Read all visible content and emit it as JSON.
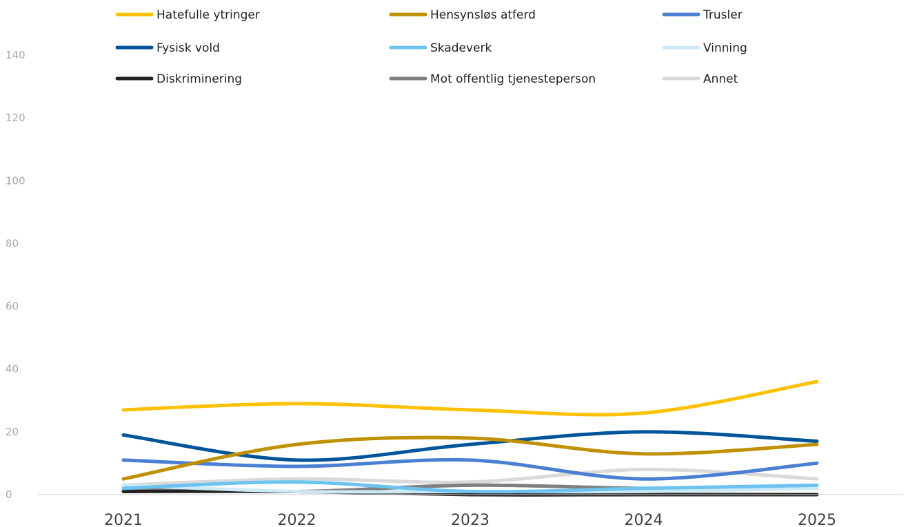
{
  "chart_data": {
    "type": "line",
    "title": "",
    "xlabel": "",
    "ylabel": "",
    "categories": [
      "2021",
      "2022",
      "2023",
      "2024",
      "2025"
    ],
    "ylim": [
      0,
      140
    ],
    "yticks": [
      0,
      20,
      40,
      60,
      80,
      100,
      120,
      140
    ],
    "grid": false,
    "legend_position": "top",
    "smooth": true,
    "series": [
      {
        "name": "Hatefulle ytringer",
        "color": "#FFC000",
        "values": [
          27,
          29,
          27,
          26,
          36
        ]
      },
      {
        "name": "Hensynsløs atferd",
        "color": "#BF9000",
        "values": [
          5,
          16,
          18,
          13,
          16
        ]
      },
      {
        "name": "Trusler",
        "color": "#4A7FD4",
        "values": [
          11,
          9,
          11,
          5,
          10
        ]
      },
      {
        "name": "Fysisk vold",
        "color": "#00549A",
        "values": [
          19,
          11,
          16,
          20,
          17
        ]
      },
      {
        "name": "Skadeverk",
        "color": "#6CC3F0",
        "values": [
          2,
          4,
          1,
          2,
          3
        ]
      },
      {
        "name": "Vinning",
        "color": "#CDE9F6",
        "values": [
          3,
          1,
          1,
          1,
          2
        ]
      },
      {
        "name": "Diskriminering",
        "color": "#222222",
        "values": [
          1,
          1,
          0,
          0,
          0
        ]
      },
      {
        "name": "Mot offentlig tjenesteperson",
        "color": "#7F7F7F",
        "values": [
          2,
          1,
          3,
          2,
          2
        ]
      },
      {
        "name": "Annet",
        "color": "#D9D9D9",
        "values": [
          3,
          5,
          4,
          8,
          5
        ]
      }
    ]
  }
}
